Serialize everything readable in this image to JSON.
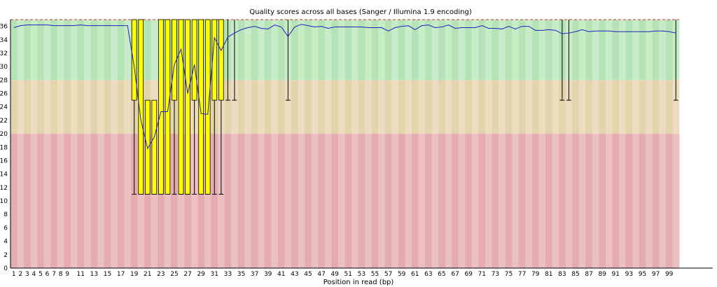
{
  "chart_data": {
    "type": "boxplot",
    "title": "Quality scores across all bases (Sanger / Illumina 1.9 encoding)",
    "xlabel": "Position in read (bp)",
    "ylabel": "",
    "ylim": [
      0,
      37
    ],
    "y_ticks": [
      0,
      2,
      4,
      6,
      8,
      10,
      12,
      14,
      16,
      18,
      20,
      22,
      24,
      26,
      28,
      30,
      32,
      34,
      36
    ],
    "x_tick_labels": [
      "1",
      "2",
      "3",
      "4",
      "5",
      "6",
      "7",
      "8",
      "9",
      "11",
      "13",
      "15",
      "17",
      "19",
      "21",
      "23",
      "25",
      "27",
      "29",
      "31",
      "33",
      "35",
      "37",
      "39",
      "41",
      "43",
      "45",
      "47",
      "49",
      "51",
      "53",
      "55",
      "57",
      "59",
      "61",
      "63",
      "65",
      "67",
      "69",
      "71",
      "73",
      "75",
      "77",
      "79",
      "81",
      "83",
      "85",
      "87",
      "89",
      "91",
      "93",
      "95",
      "97",
      "99"
    ],
    "zones": [
      {
        "name": "good",
        "from": 28,
        "to": 37,
        "colors": [
          "#b6e3b6",
          "#c8ecc8"
        ]
      },
      {
        "name": "reasonable",
        "from": 20,
        "to": 28,
        "colors": [
          "#e4d4ae",
          "#ecdcc0"
        ]
      },
      {
        "name": "poor",
        "from": 0,
        "to": 20,
        "colors": [
          "#e4acae",
          "#eac0c2"
        ]
      }
    ],
    "colors": {
      "box": "#ffff00",
      "box_edge": "#000000",
      "mean_line": "#2020c0",
      "whisker": "#000000",
      "top_line": "#cc3333"
    },
    "mean": [
      35.8,
      36.1,
      36.2,
      36.2,
      36.2,
      36.2,
      36.1,
      36.1,
      36.1,
      36.1,
      36.2,
      36.1,
      36.1,
      36.1,
      36.1,
      36.1,
      36.1,
      36.1,
      30.0,
      22.0,
      17.8,
      19.5,
      23.3,
      23.3,
      30.3,
      32.6,
      26.0,
      30.3,
      23.0,
      22.9,
      34.3,
      32.4,
      34.4,
      35.0,
      35.5,
      35.8,
      36.0,
      35.7,
      35.6,
      36.2,
      35.9,
      34.5,
      35.9,
      36.3,
      36.1,
      35.9,
      36.0,
      35.7,
      35.9,
      35.9,
      35.9,
      35.9,
      35.9,
      35.8,
      35.8,
      35.8,
      35.3,
      35.8,
      36.0,
      36.1,
      35.5,
      36.1,
      36.2,
      35.8,
      35.9,
      36.2,
      35.7,
      35.8,
      35.8,
      35.8,
      36.1,
      35.7,
      35.7,
      35.6,
      36.0,
      35.6,
      36.0,
      36.0,
      35.4,
      35.4,
      35.5,
      35.4,
      34.9,
      35.0,
      35.2,
      35.5,
      35.2,
      35.3,
      35.3,
      35.3,
      35.2,
      35.2,
      35.2,
      35.2,
      35.2,
      35.2,
      35.3,
      35.3,
      35.2,
      35.0
    ],
    "boxes": [
      {
        "position": 19,
        "q1": 25,
        "q3": 37,
        "low": 11,
        "high": 37
      },
      {
        "position": 20,
        "q1": 11,
        "q3": 37,
        "low": 11,
        "high": 37
      },
      {
        "position": 21,
        "q1": 11,
        "q3": 25,
        "low": 11,
        "high": 25
      },
      {
        "position": 22,
        "q1": 11,
        "q3": 25,
        "low": 11,
        "high": 25
      },
      {
        "position": 23,
        "q1": 11,
        "q3": 37,
        "low": 11,
        "high": 37
      },
      {
        "position": 24,
        "q1": 11,
        "q3": 37,
        "low": 11,
        "high": 37
      },
      {
        "position": 25,
        "q1": 25,
        "q3": 37,
        "low": 11,
        "high": 37
      },
      {
        "position": 26,
        "q1": 11,
        "q3": 37,
        "low": 11,
        "high": 37
      },
      {
        "position": 27,
        "q1": 11,
        "q3": 37,
        "low": 11,
        "high": 37
      },
      {
        "position": 28,
        "q1": 25,
        "q3": 37,
        "low": 11,
        "high": 37
      },
      {
        "position": 29,
        "q1": 11,
        "q3": 37,
        "low": 11,
        "high": 37
      },
      {
        "position": 30,
        "q1": 11,
        "q3": 37,
        "low": 11,
        "high": 37
      },
      {
        "position": 31,
        "q1": 25,
        "q3": 37,
        "low": 11,
        "high": 37
      },
      {
        "position": 32,
        "q1": 25,
        "q3": 37,
        "low": 11,
        "high": 37
      }
    ],
    "whiskers": [
      {
        "position": 33,
        "low": 25,
        "high": 37
      },
      {
        "position": 34,
        "low": 25,
        "high": 37
      },
      {
        "position": 42,
        "low": 25,
        "high": 37
      },
      {
        "position": 83,
        "low": 25,
        "high": 37
      },
      {
        "position": 84,
        "low": 25,
        "high": 37
      },
      {
        "position": 100,
        "low": 25,
        "high": 37
      }
    ]
  }
}
